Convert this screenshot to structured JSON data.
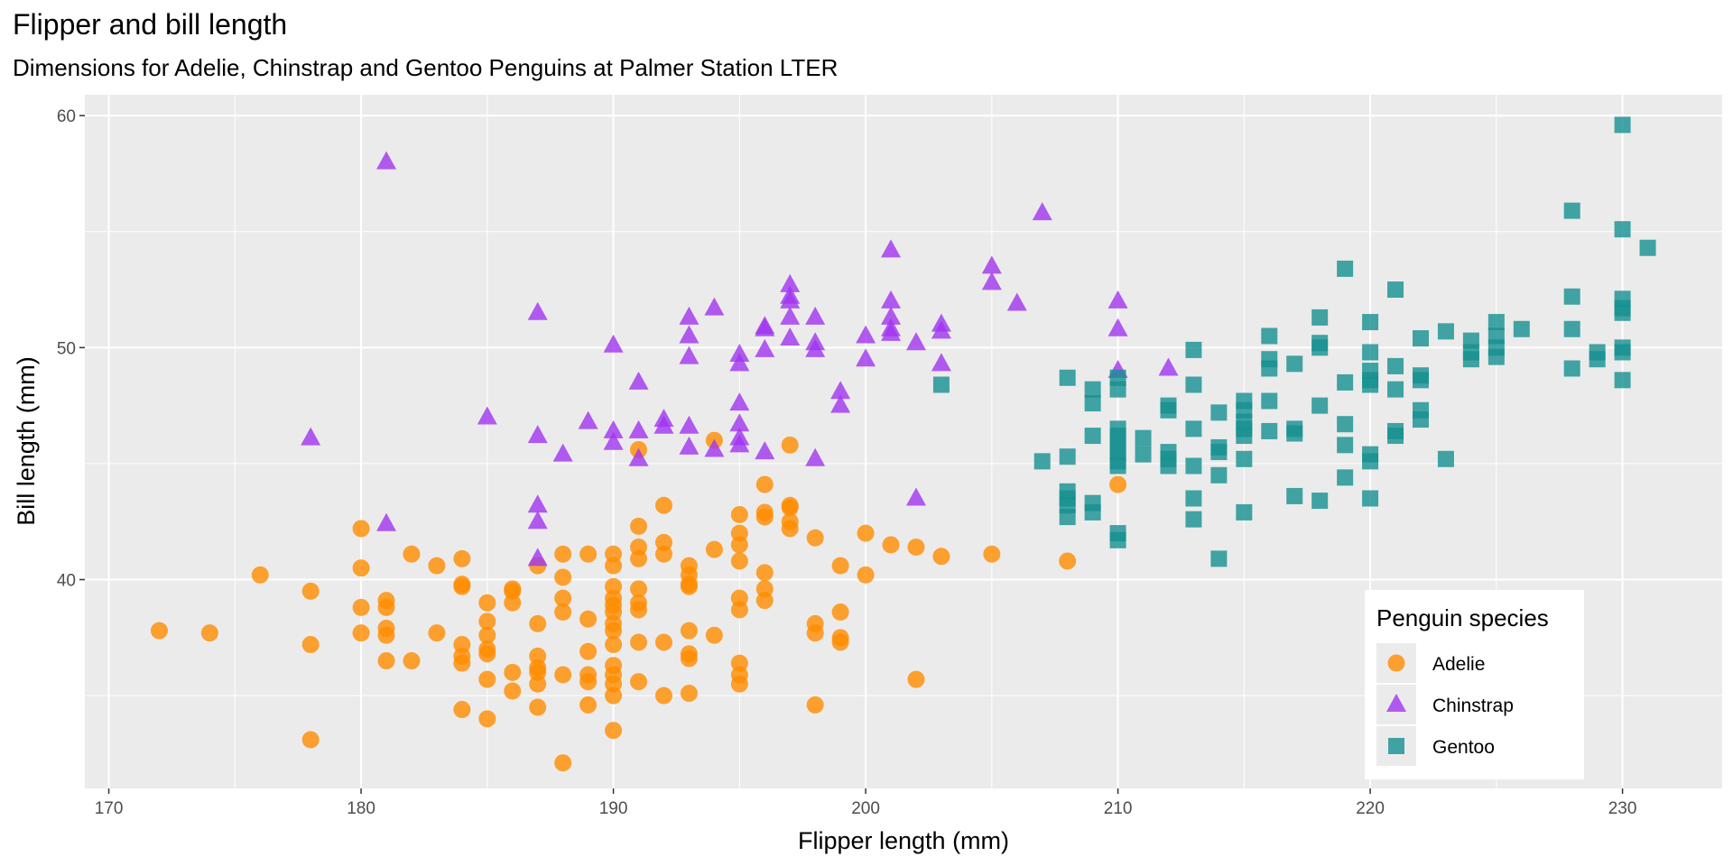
{
  "chart_data": {
    "type": "scatter",
    "title": "Flipper and bill length",
    "subtitle": "Dimensions for Adelie, Chinstrap and Gentoo Penguins at Palmer Station LTER",
    "xlabel": "Flipper length (mm)",
    "ylabel": "Bill length (mm)",
    "xlim": [
      169.05,
      233.95
    ],
    "ylim": [
      31.0,
      60.9
    ],
    "x_ticks": [
      170,
      180,
      190,
      200,
      210,
      220,
      230
    ],
    "y_ticks": [
      40,
      50,
      60
    ],
    "grid": true,
    "legend": {
      "title": "Penguin species",
      "placement": "bottom-right"
    },
    "series": [
      {
        "name": "Adelie",
        "shape": "circle",
        "color": "#FF8C00",
        "points": [
          [
            172,
            37.8
          ],
          [
            174,
            37.7
          ],
          [
            176,
            40.2
          ],
          [
            178,
            39.5
          ],
          [
            178,
            37.2
          ],
          [
            178,
            33.1
          ],
          [
            180,
            42.2
          ],
          [
            180,
            40.5
          ],
          [
            180,
            38.8
          ],
          [
            180,
            37.7
          ],
          [
            181,
            39.1
          ],
          [
            181,
            38.8
          ],
          [
            181,
            37.9
          ],
          [
            181,
            37.6
          ],
          [
            181,
            36.5
          ],
          [
            182,
            41.1
          ],
          [
            182,
            36.5
          ],
          [
            183,
            40.6
          ],
          [
            183,
            37.7
          ],
          [
            184,
            40.9
          ],
          [
            184,
            39.8
          ],
          [
            184,
            39.7
          ],
          [
            184,
            37.2
          ],
          [
            184,
            36.7
          ],
          [
            184,
            36.4
          ],
          [
            184,
            34.4
          ],
          [
            185,
            39.0
          ],
          [
            185,
            38.2
          ],
          [
            185,
            37.6
          ],
          [
            185,
            37.0
          ],
          [
            185,
            36.8
          ],
          [
            185,
            35.7
          ],
          [
            185,
            34.0
          ],
          [
            186,
            39.6
          ],
          [
            186,
            39.5
          ],
          [
            186,
            39.0
          ],
          [
            186,
            36.0
          ],
          [
            186,
            35.2
          ],
          [
            187,
            40.6
          ],
          [
            187,
            38.1
          ],
          [
            187,
            36.7
          ],
          [
            187,
            36.2
          ],
          [
            187,
            36.0
          ],
          [
            187,
            35.5
          ],
          [
            187,
            34.5
          ],
          [
            188,
            41.1
          ],
          [
            188,
            40.1
          ],
          [
            188,
            39.2
          ],
          [
            188,
            38.6
          ],
          [
            188,
            35.9
          ],
          [
            188,
            32.1
          ],
          [
            189,
            41.1
          ],
          [
            189,
            38.3
          ],
          [
            189,
            36.9
          ],
          [
            189,
            35.9
          ],
          [
            189,
            35.6
          ],
          [
            189,
            34.6
          ],
          [
            190,
            41.1
          ],
          [
            190,
            40.6
          ],
          [
            190,
            39.7
          ],
          [
            190,
            39.2
          ],
          [
            190,
            38.9
          ],
          [
            190,
            38.6
          ],
          [
            190,
            38.1
          ],
          [
            190,
            37.8
          ],
          [
            190,
            37.2
          ],
          [
            190,
            36.3
          ],
          [
            190,
            35.9
          ],
          [
            190,
            35.5
          ],
          [
            190,
            35.0
          ],
          [
            190,
            33.5
          ],
          [
            191,
            45.6
          ],
          [
            191,
            42.3
          ],
          [
            191,
            41.4
          ],
          [
            191,
            40.9
          ],
          [
            191,
            39.6
          ],
          [
            191,
            39.0
          ],
          [
            191,
            38.7
          ],
          [
            191,
            37.3
          ],
          [
            191,
            35.6
          ],
          [
            192,
            43.2
          ],
          [
            192,
            41.6
          ],
          [
            192,
            41.1
          ],
          [
            192,
            37.3
          ],
          [
            192,
            35.0
          ],
          [
            193,
            40.6
          ],
          [
            193,
            40.2
          ],
          [
            193,
            39.8
          ],
          [
            193,
            39.7
          ],
          [
            193,
            37.8
          ],
          [
            193,
            36.8
          ],
          [
            193,
            36.6
          ],
          [
            193,
            35.1
          ],
          [
            194,
            46.0
          ],
          [
            194,
            41.3
          ],
          [
            194,
            37.6
          ],
          [
            195,
            42.8
          ],
          [
            195,
            42.0
          ],
          [
            195,
            41.5
          ],
          [
            195,
            40.8
          ],
          [
            195,
            39.2
          ],
          [
            195,
            38.7
          ],
          [
            195,
            36.4
          ],
          [
            195,
            35.9
          ],
          [
            195,
            35.5
          ],
          [
            196,
            44.1
          ],
          [
            196,
            42.9
          ],
          [
            196,
            42.7
          ],
          [
            196,
            40.3
          ],
          [
            196,
            39.6
          ],
          [
            196,
            39.1
          ],
          [
            197,
            45.8
          ],
          [
            197,
            43.2
          ],
          [
            197,
            43.1
          ],
          [
            197,
            42.5
          ],
          [
            197,
            42.2
          ],
          [
            198,
            41.8
          ],
          [
            198,
            38.1
          ],
          [
            198,
            37.7
          ],
          [
            198,
            34.6
          ],
          [
            199,
            40.6
          ],
          [
            199,
            38.6
          ],
          [
            199,
            37.5
          ],
          [
            199,
            37.3
          ],
          [
            200,
            42.0
          ],
          [
            200,
            40.2
          ],
          [
            201,
            41.5
          ],
          [
            202,
            41.4
          ],
          [
            202,
            35.7
          ],
          [
            203,
            41.0
          ],
          [
            205,
            41.1
          ],
          [
            208,
            40.8
          ],
          [
            210,
            44.1
          ]
        ]
      },
      {
        "name": "Chinstrap",
        "shape": "triangle",
        "color": "#A034F0",
        "points": [
          [
            178,
            46.1
          ],
          [
            181,
            58.0
          ],
          [
            181,
            42.4
          ],
          [
            185,
            47.0
          ],
          [
            187,
            51.5
          ],
          [
            187,
            46.2
          ],
          [
            187,
            43.2
          ],
          [
            187,
            42.5
          ],
          [
            187,
            40.9
          ],
          [
            188,
            45.4
          ],
          [
            189,
            46.8
          ],
          [
            190,
            50.1
          ],
          [
            190,
            46.4
          ],
          [
            190,
            45.9
          ],
          [
            191,
            48.5
          ],
          [
            191,
            46.4
          ],
          [
            191,
            45.2
          ],
          [
            192,
            46.9
          ],
          [
            192,
            46.6
          ],
          [
            193,
            51.3
          ],
          [
            193,
            50.5
          ],
          [
            193,
            49.6
          ],
          [
            193,
            46.6
          ],
          [
            193,
            45.7
          ],
          [
            194,
            51.7
          ],
          [
            194,
            45.6
          ],
          [
            195,
            49.7
          ],
          [
            195,
            49.3
          ],
          [
            195,
            47.6
          ],
          [
            195,
            46.7
          ],
          [
            195,
            46.1
          ],
          [
            195,
            45.8
          ],
          [
            196,
            50.9
          ],
          [
            196,
            50.8
          ],
          [
            196,
            49.9
          ],
          [
            196,
            45.5
          ],
          [
            197,
            52.7
          ],
          [
            197,
            52.2
          ],
          [
            197,
            52.0
          ],
          [
            197,
            51.3
          ],
          [
            197,
            50.4
          ],
          [
            198,
            51.3
          ],
          [
            198,
            50.2
          ],
          [
            198,
            49.9
          ],
          [
            198,
            45.2
          ],
          [
            199,
            48.1
          ],
          [
            199,
            47.5
          ],
          [
            200,
            50.5
          ],
          [
            200,
            49.5
          ],
          [
            201,
            54.2
          ],
          [
            201,
            52.0
          ],
          [
            201,
            51.3
          ],
          [
            201,
            50.8
          ],
          [
            201,
            50.6
          ],
          [
            202,
            50.2
          ],
          [
            202,
            43.5
          ],
          [
            203,
            51.0
          ],
          [
            203,
            50.7
          ],
          [
            203,
            49.3
          ],
          [
            205,
            53.5
          ],
          [
            205,
            52.8
          ],
          [
            206,
            51.9
          ],
          [
            207,
            55.8
          ],
          [
            210,
            52.0
          ],
          [
            210,
            50.8
          ],
          [
            210,
            49.0
          ],
          [
            212,
            49.1
          ]
        ]
      },
      {
        "name": "Gentoo",
        "shape": "square",
        "color": "#159090",
        "points": [
          [
            203,
            48.4
          ],
          [
            207,
            45.1
          ],
          [
            208,
            48.7
          ],
          [
            208,
            45.3
          ],
          [
            208,
            43.8
          ],
          [
            208,
            43.5
          ],
          [
            208,
            43.2
          ],
          [
            208,
            42.7
          ],
          [
            209,
            48.2
          ],
          [
            209,
            47.6
          ],
          [
            209,
            46.2
          ],
          [
            209,
            43.3
          ],
          [
            209,
            42.9
          ],
          [
            210,
            48.7
          ],
          [
            210,
            48.2
          ],
          [
            210,
            46.5
          ],
          [
            210,
            46.2
          ],
          [
            210,
            45.8
          ],
          [
            210,
            45.5
          ],
          [
            210,
            45.1
          ],
          [
            210,
            44.9
          ],
          [
            210,
            42.0
          ],
          [
            210,
            41.7
          ],
          [
            211,
            46.1
          ],
          [
            211,
            45.4
          ],
          [
            212,
            47.5
          ],
          [
            212,
            47.3
          ],
          [
            212,
            45.5
          ],
          [
            212,
            45.2
          ],
          [
            212,
            44.9
          ],
          [
            213,
            49.9
          ],
          [
            213,
            48.4
          ],
          [
            213,
            46.5
          ],
          [
            213,
            44.9
          ],
          [
            213,
            43.5
          ],
          [
            213,
            42.6
          ],
          [
            214,
            47.2
          ],
          [
            214,
            45.7
          ],
          [
            214,
            45.5
          ],
          [
            214,
            44.5
          ],
          [
            214,
            40.9
          ],
          [
            215,
            47.7
          ],
          [
            215,
            47.3
          ],
          [
            215,
            46.8
          ],
          [
            215,
            46.5
          ],
          [
            215,
            46.2
          ],
          [
            215,
            45.2
          ],
          [
            215,
            42.9
          ],
          [
            216,
            50.5
          ],
          [
            216,
            49.5
          ],
          [
            216,
            49.1
          ],
          [
            216,
            47.7
          ],
          [
            216,
            46.4
          ],
          [
            217,
            49.3
          ],
          [
            217,
            46.5
          ],
          [
            217,
            46.3
          ],
          [
            217,
            43.6
          ],
          [
            218,
            51.3
          ],
          [
            218,
            50.2
          ],
          [
            218,
            50.0
          ],
          [
            218,
            47.5
          ],
          [
            218,
            43.4
          ],
          [
            219,
            53.4
          ],
          [
            219,
            48.5
          ],
          [
            219,
            46.7
          ],
          [
            219,
            45.8
          ],
          [
            219,
            44.4
          ],
          [
            220,
            51.1
          ],
          [
            220,
            49.8
          ],
          [
            220,
            49.0
          ],
          [
            220,
            48.6
          ],
          [
            220,
            48.4
          ],
          [
            220,
            45.4
          ],
          [
            220,
            45.1
          ],
          [
            220,
            43.5
          ],
          [
            221,
            52.5
          ],
          [
            221,
            49.2
          ],
          [
            221,
            48.2
          ],
          [
            221,
            46.4
          ],
          [
            221,
            46.2
          ],
          [
            222,
            50.4
          ],
          [
            222,
            48.8
          ],
          [
            222,
            48.6
          ],
          [
            222,
            47.3
          ],
          [
            222,
            46.9
          ],
          [
            223,
            50.7
          ],
          [
            223,
            45.2
          ],
          [
            224,
            50.3
          ],
          [
            224,
            49.8
          ],
          [
            224,
            49.5
          ],
          [
            225,
            51.1
          ],
          [
            225,
            50.5
          ],
          [
            225,
            50.0
          ],
          [
            225,
            49.6
          ],
          [
            226,
            50.8
          ],
          [
            228,
            55.9
          ],
          [
            228,
            52.2
          ],
          [
            228,
            50.8
          ],
          [
            228,
            49.1
          ],
          [
            229,
            49.8
          ],
          [
            229,
            49.5
          ],
          [
            230,
            59.6
          ],
          [
            230,
            55.1
          ],
          [
            230,
            52.1
          ],
          [
            230,
            51.7
          ],
          [
            230,
            51.5
          ],
          [
            230,
            50.0
          ],
          [
            230,
            49.8
          ],
          [
            230,
            48.6
          ],
          [
            231,
            54.3
          ]
        ]
      }
    ]
  }
}
